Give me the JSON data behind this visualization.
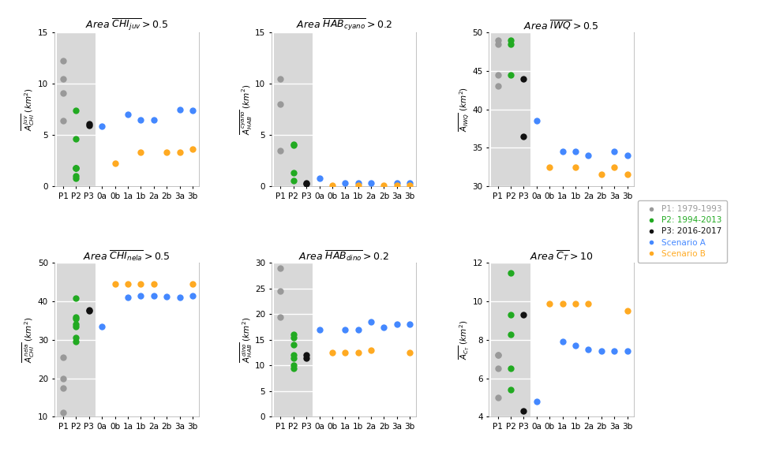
{
  "categories": [
    "P1",
    "P2",
    "P3",
    "0a",
    "0b",
    "1a",
    "1b",
    "2a",
    "2b",
    "3a",
    "3b"
  ],
  "colors": {
    "P1": "#999999",
    "P2": "#22aa22",
    "P3": "#111111",
    "ScenA": "#4488ff",
    "ScenB": "#ffaa22"
  },
  "panel1": {
    "title": "$Area\\ \\overline{CHI_{juv}} > 0.5$",
    "ylabel": "$\\overline{A^{juv}_{CHI}}\\ (km^2)$",
    "ylim": [
      0,
      15
    ],
    "yticks": [
      0,
      5,
      10,
      15
    ],
    "P1": [
      6.4,
      10.5,
      9.1,
      12.2
    ],
    "P2": [
      7.4,
      4.6,
      1.8,
      1.8,
      1.8,
      1.0,
      0.8
    ],
    "P3": [
      6.1,
      5.9
    ],
    "ScenA_x": [
      "0a",
      "1a",
      "1b",
      "2a",
      "3a",
      "3b"
    ],
    "ScenA": [
      5.85,
      7.0,
      6.5,
      6.5,
      7.5,
      7.4
    ],
    "ScenB_x": [
      "0b",
      "1b",
      "2b",
      "3a",
      "3b"
    ],
    "ScenB": [
      2.2,
      3.3,
      3.3,
      3.3,
      3.6
    ]
  },
  "panel2": {
    "title": "$Area\\ \\overline{HAB_{cyano}} > 0.2$",
    "ylabel": "$\\overline{A^{cyano}_{HAB}}\\ (km^2)$",
    "ylim": [
      0,
      15
    ],
    "yticks": [
      0,
      5,
      10,
      15
    ],
    "P1": [
      3.5,
      8.0,
      10.5
    ],
    "P2": [
      4.1,
      4.0,
      1.3,
      0.5
    ],
    "P3": [
      0.3,
      0.2
    ],
    "ScenA_x": [
      "0a",
      "1a",
      "1b",
      "2a",
      "3a",
      "3b"
    ],
    "ScenA": [
      0.8,
      0.3,
      0.3,
      0.3,
      0.3,
      0.3
    ],
    "ScenB_x": [
      "0b",
      "1b",
      "2b",
      "3a",
      "3b"
    ],
    "ScenB": [
      0.1,
      0.1,
      0.1,
      0.1,
      0.1
    ]
  },
  "panel3": {
    "title": "$Area\\ \\overline{IWQ} > 0.5$",
    "ylabel": "$\\overline{A_{IWQ}}\\ (km^2)$",
    "ylim": [
      30,
      50
    ],
    "yticks": [
      30,
      35,
      40,
      45,
      50
    ],
    "P1": [
      43.0,
      44.5,
      48.5,
      49.0
    ],
    "P2": [
      44.5,
      48.5,
      49.0
    ],
    "P3": [
      36.5,
      44.0
    ],
    "ScenA_x": [
      "0a",
      "1a",
      "1b",
      "2a",
      "3a",
      "3b"
    ],
    "ScenA": [
      38.5,
      34.5,
      34.5,
      34.0,
      34.5,
      34.0
    ],
    "ScenB_x": [
      "0b",
      "1b",
      "2b",
      "3a",
      "3b"
    ],
    "ScenB": [
      32.5,
      32.5,
      31.5,
      32.5,
      31.5
    ]
  },
  "panel4": {
    "title": "$Area\\ \\overline{CHI_{nela}} > 0.5$",
    "ylabel": "$\\overline{A^{nela}_{CHI}}\\ (km^2)$",
    "ylim": [
      10,
      50
    ],
    "yticks": [
      10,
      20,
      30,
      40,
      50
    ],
    "P1": [
      11.0,
      17.5,
      20.0,
      25.5
    ],
    "P2": [
      29.5,
      30.5,
      33.5,
      34.0,
      35.5,
      36.0,
      40.8
    ],
    "P3": [
      37.5,
      37.8
    ],
    "ScenA_x": [
      "0a",
      "1a",
      "1b",
      "2a",
      "2b",
      "3a",
      "3b"
    ],
    "ScenA": [
      33.5,
      41.0,
      41.5,
      41.5,
      41.2,
      41.0,
      41.5
    ],
    "ScenB_x": [
      "0b",
      "1a",
      "1b",
      "2a",
      "3b"
    ],
    "ScenB": [
      44.5,
      44.5,
      44.5,
      44.5,
      44.5
    ]
  },
  "panel5": {
    "title": "$Area\\ \\overline{HAB_{dino}} > 0.2$",
    "ylabel": "$\\overline{A^{dino}_{HAB}}\\ (km^2)$",
    "ylim": [
      0,
      30
    ],
    "yticks": [
      0,
      5,
      10,
      15,
      20,
      25,
      30
    ],
    "P1": [
      19.5,
      24.5,
      29.0
    ],
    "P2": [
      9.5,
      10.0,
      11.5,
      12.0,
      14.0,
      16.0,
      15.5
    ],
    "P3": [
      12.0,
      11.5
    ],
    "ScenA_x": [
      "0a",
      "1a",
      "1b",
      "2a",
      "2b",
      "3a",
      "3b"
    ],
    "ScenA": [
      17.0,
      17.0,
      17.0,
      18.5,
      17.5,
      18.0,
      18.0
    ],
    "ScenB_x": [
      "0b",
      "1a",
      "1b",
      "2a",
      "3b"
    ],
    "ScenB": [
      12.5,
      12.5,
      12.5,
      13.0,
      12.5
    ]
  },
  "panel6": {
    "title": "$Area\\ \\overline{C_T} > 10$",
    "ylabel": "$\\overline{A_{C_T}}\\ (km^2)$",
    "ylim": [
      4,
      12
    ],
    "yticks": [
      4,
      6,
      8,
      10,
      12
    ],
    "P1": [
      5.0,
      6.5,
      7.2,
      7.2
    ],
    "P2": [
      5.4,
      6.5,
      8.3,
      9.3,
      11.5
    ],
    "P3": [
      4.3,
      9.3
    ],
    "ScenA_x": [
      "0a",
      "1a",
      "1b",
      "2a",
      "2b",
      "3a",
      "3b"
    ],
    "ScenA": [
      4.8,
      7.9,
      7.7,
      7.5,
      7.4,
      7.4,
      7.4
    ],
    "ScenB_x": [
      "0b",
      "1a",
      "1b",
      "2a",
      "3b"
    ],
    "ScenB": [
      9.9,
      9.9,
      9.9,
      9.9,
      9.5
    ]
  },
  "legend": {
    "P1": "P1: 1979-1993",
    "P2": "P2: 1994-2013",
    "P3": "P3: 2016-2017",
    "ScenA": "Scenario A",
    "ScenB": "Scenario B"
  },
  "bg_color": "#d8d8d8",
  "grid_color": "#ffffff",
  "marker_size": 6
}
